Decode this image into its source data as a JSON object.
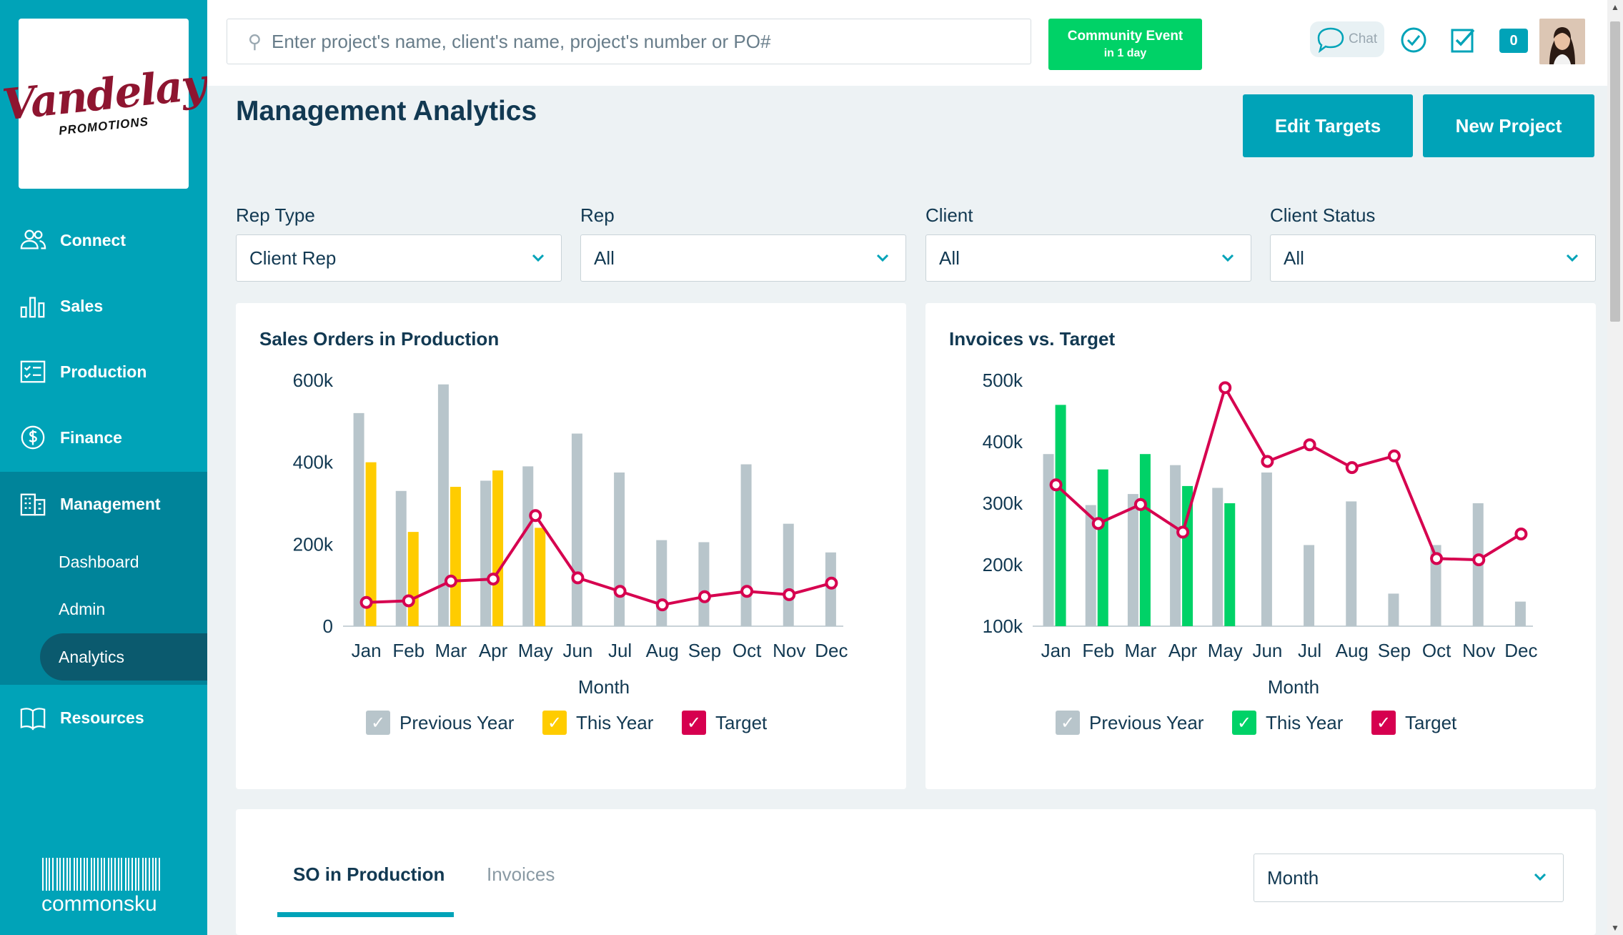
{
  "brand": {
    "logo_main": "Vandelay",
    "logo_sub": "PROMOTIONS",
    "footer_logo": "commonsku"
  },
  "nav": {
    "items": [
      {
        "label": "Connect",
        "icon": "users-icon"
      },
      {
        "label": "Sales",
        "icon": "bar-chart-icon"
      },
      {
        "label": "Production",
        "icon": "checklist-icon"
      },
      {
        "label": "Finance",
        "icon": "dollar-icon"
      },
      {
        "label": "Management",
        "icon": "building-icon"
      },
      {
        "label": "Resources",
        "icon": "book-icon"
      }
    ],
    "sub_items": [
      {
        "label": "Dashboard"
      },
      {
        "label": "Admin"
      },
      {
        "label": "Analytics",
        "active": true
      }
    ]
  },
  "topbar": {
    "search_placeholder": "Enter project's name, client's name, project's number or PO#",
    "event_title": "Community Event",
    "event_sub": "in 1 day",
    "chat_label": "Chat",
    "notifications": "0"
  },
  "page": {
    "title": "Management Analytics",
    "edit_targets": "Edit Targets",
    "new_project": "New Project"
  },
  "filters": [
    {
      "label": "Rep Type",
      "value": "Client Rep"
    },
    {
      "label": "Rep",
      "value": "All"
    },
    {
      "label": "Client",
      "value": "All"
    },
    {
      "label": "Client Status",
      "value": "All"
    }
  ],
  "legend": {
    "previous": "Previous Year",
    "this": "This Year",
    "target": "Target"
  },
  "colors": {
    "accent": "#00a3b8",
    "previous_year": "#b8c5cb",
    "this_year_orders": "#ffcc00",
    "this_year_invoices": "#00d267",
    "target": "#d6004f"
  },
  "chart_data": [
    {
      "type": "bar",
      "title": "Sales Orders in Production",
      "xlabel": "Month",
      "ylabel": "",
      "categories": [
        "Jan",
        "Feb",
        "Mar",
        "Apr",
        "May",
        "Jun",
        "Jul",
        "Aug",
        "Sep",
        "Oct",
        "Nov",
        "Dec"
      ],
      "ylim": [
        0,
        600000
      ],
      "yticks": [
        0,
        200000,
        400000,
        600000
      ],
      "ytick_labels": [
        "0",
        "200k",
        "400k",
        "600k"
      ],
      "series": [
        {
          "name": "Previous Year",
          "kind": "bar",
          "values": [
            520000,
            330000,
            590000,
            355000,
            390000,
            470000,
            375000,
            210000,
            205000,
            395000,
            250000,
            180000
          ]
        },
        {
          "name": "This Year",
          "kind": "bar",
          "values": [
            400000,
            230000,
            340000,
            380000,
            240000,
            null,
            null,
            null,
            null,
            null,
            null,
            null
          ]
        },
        {
          "name": "Target",
          "kind": "line",
          "values": [
            58000,
            62000,
            110000,
            115000,
            270000,
            118000,
            85000,
            52000,
            72000,
            85000,
            77000,
            105000
          ]
        }
      ]
    },
    {
      "type": "bar",
      "title": "Invoices vs. Target",
      "xlabel": "Month",
      "ylabel": "",
      "categories": [
        "Jan",
        "Feb",
        "Mar",
        "Apr",
        "May",
        "Jun",
        "Jul",
        "Aug",
        "Sep",
        "Oct",
        "Nov",
        "Dec"
      ],
      "ylim": [
        100000,
        500000
      ],
      "yticks": [
        100000,
        200000,
        300000,
        400000,
        500000
      ],
      "ytick_labels": [
        "100k",
        "200k",
        "300k",
        "400k",
        "500k"
      ],
      "series": [
        {
          "name": "Previous Year",
          "kind": "bar",
          "values": [
            380000,
            297000,
            315000,
            362000,
            325000,
            350000,
            232000,
            303000,
            153000,
            232000,
            300000,
            140000
          ]
        },
        {
          "name": "This Year",
          "kind": "bar",
          "values": [
            460000,
            355000,
            380000,
            328000,
            300000,
            null,
            null,
            null,
            null,
            null,
            null,
            null
          ]
        },
        {
          "name": "Target",
          "kind": "line",
          "values": [
            330000,
            267000,
            298000,
            253000,
            488000,
            368000,
            395000,
            358000,
            377000,
            210000,
            208000,
            250000
          ]
        }
      ]
    }
  ],
  "bottom": {
    "tabs": [
      "SO in Production",
      "Invoices"
    ],
    "period": "Month"
  }
}
